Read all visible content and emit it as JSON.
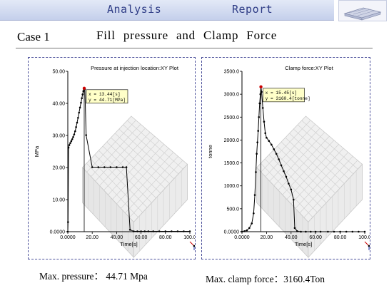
{
  "header": {
    "left_tab": "Analysis",
    "right_tab": "Report"
  },
  "slide": {
    "case_label": "Case 1",
    "title": "Fill pressure and Clamp Force"
  },
  "captions": {
    "left": "Max. pressure： 44.71 Mpa",
    "right": "Max. clamp force：3160.4Ton"
  },
  "chart_data": [
    {
      "type": "line",
      "title": "Pressure at injection location:XY Plot",
      "xlabel": "Time[s]",
      "ylabel": "MPa",
      "xlim": [
        0,
        100
      ],
      "ylim": [
        0,
        50
      ],
      "xticks": [
        "0.0000",
        "20.00",
        "40.00",
        "60.00",
        "80.00",
        "100.0"
      ],
      "yticks": [
        "0.0000",
        "10.00",
        "20.00",
        "30.00",
        "40.00",
        "50.00"
      ],
      "tooltip": [
        "x = 13.44[s]",
        "y = 44.71[MPa]"
      ],
      "marker": {
        "x": 13.44,
        "y": 44.71
      },
      "series": [
        {
          "x": [
            0,
            0.2,
            0.6,
            1.2,
            2.0,
            2.8,
            3.6,
            4.4,
            5.2,
            6.0,
            6.8,
            7.6,
            8.4,
            9.2,
            10.0,
            10.8,
            11.5,
            12.1,
            12.7,
            13.2,
            13.44,
            14.0,
            15.0,
            20,
            25,
            30,
            35,
            40,
            45,
            48,
            51,
            54,
            57,
            60,
            63,
            66,
            70,
            75,
            80,
            85,
            90,
            95,
            100
          ],
          "y": [
            0,
            3,
            26.2,
            27,
            27.6,
            28.2,
            28.8,
            29.5,
            30.3,
            31.3,
            32.6,
            34.0,
            35.5,
            37.1,
            38.7,
            40.2,
            41.6,
            42.8,
            43.8,
            44.4,
            44.71,
            44.5,
            30.1,
            20.1,
            20.1,
            20.1,
            20.1,
            20.1,
            20.1,
            20.1,
            0.6,
            0.1,
            0.1,
            0.1,
            0.1,
            0.1,
            0.1,
            0.1,
            0.1,
            0.1,
            0.1,
            0.1,
            0.1
          ]
        }
      ]
    },
    {
      "type": "line",
      "title": "Clamp force:XY Plot",
      "xlabel": "Time[s]",
      "ylabel": "tonne",
      "xlim": [
        0,
        100
      ],
      "ylim": [
        0,
        3500
      ],
      "xticks": [
        "0.0000",
        "20.00",
        "40.00",
        "60.00",
        "80.00",
        "100.0"
      ],
      "yticks": [
        "0.0000",
        "500.0",
        "1000.0",
        "1500.0",
        "2000.0",
        "2500.0",
        "3000.0",
        "3500.0"
      ],
      "tooltip": [
        "x = 15.45[s]",
        "y = 3160.4[tonne]"
      ],
      "marker": {
        "x": 15.45,
        "y": 3160.4
      },
      "series": [
        {
          "x": [
            0,
            2,
            4,
            6,
            8,
            9.5,
            10.5,
            11.3,
            12.0,
            12.6,
            13.2,
            13.8,
            14.4,
            15.0,
            15.45,
            16.0,
            17.0,
            18.0,
            19.0,
            20.0,
            22,
            24,
            26,
            28,
            30,
            32,
            34,
            36,
            38,
            40,
            42,
            43,
            45,
            48,
            52,
            56,
            60,
            64,
            70,
            75,
            80,
            85,
            90,
            95,
            100
          ],
          "y": [
            0,
            10,
            30,
            80,
            180,
            400,
            800,
            1300,
            1700,
            1950,
            2200,
            2500,
            2800,
            3000,
            3160.4,
            3050,
            2700,
            2400,
            2150,
            2050,
            1980,
            1900,
            1800,
            1700,
            1580,
            1450,
            1320,
            1200,
            1050,
            920,
            700,
            80,
            10,
            0,
            0,
            0,
            0,
            0,
            0,
            0,
            0,
            0,
            0,
            0,
            0
          ]
        }
      ]
    }
  ]
}
